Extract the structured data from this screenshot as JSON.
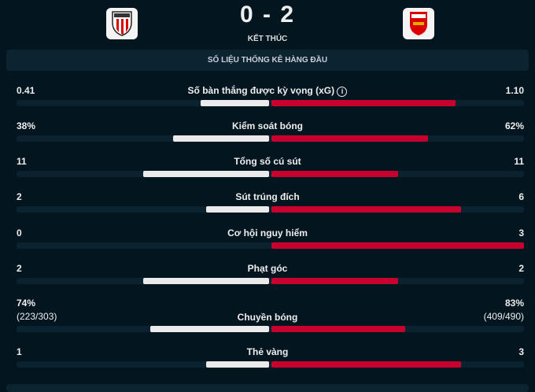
{
  "match": {
    "home_score": "0",
    "separator": "-",
    "away_score": "2",
    "status": "KẾT THÚC",
    "home_logo": "Athletic Club crest",
    "away_logo": "Arsenal crest",
    "score_text": "0 - 2"
  },
  "section_title": "SỐ LIỆU THỐNG KÊ HÀNG ĐẦU",
  "colors": {
    "home": "#eaeaea",
    "away": "#c8002e",
    "background": "#031620"
  },
  "stats": [
    {
      "label": "Số bàn thắng được kỳ vọng (xG)",
      "home": "0.41",
      "away": "1.10",
      "home_value": 0.41,
      "away_value": 1.1,
      "info_icon": true
    },
    {
      "label": "Kiểm soát bóng",
      "home": "38%",
      "away": "62%",
      "home_value": 38,
      "away_value": 62
    },
    {
      "label": "Tổng số cú sút",
      "home": "11",
      "away": "11",
      "home_value": 11,
      "away_value": 11
    },
    {
      "label": "Sút trúng đích",
      "home": "2",
      "away": "6",
      "home_value": 2,
      "away_value": 6
    },
    {
      "label": "Cơ hội nguy hiểm",
      "home": "0",
      "away": "3",
      "home_value": 0,
      "away_value": 3
    },
    {
      "label": "Phạt góc",
      "home": "2",
      "away": "2",
      "home_value": 2,
      "away_value": 2
    },
    {
      "label": "Chuyền bóng",
      "home": "74%",
      "away": "83%",
      "home_sub": "(223/303)",
      "away_sub": "(409/490)",
      "home_value": 74,
      "away_value": 83
    },
    {
      "label": "Thẻ vàng",
      "home": "1",
      "away": "3",
      "home_value": 1,
      "away_value": 3
    }
  ]
}
